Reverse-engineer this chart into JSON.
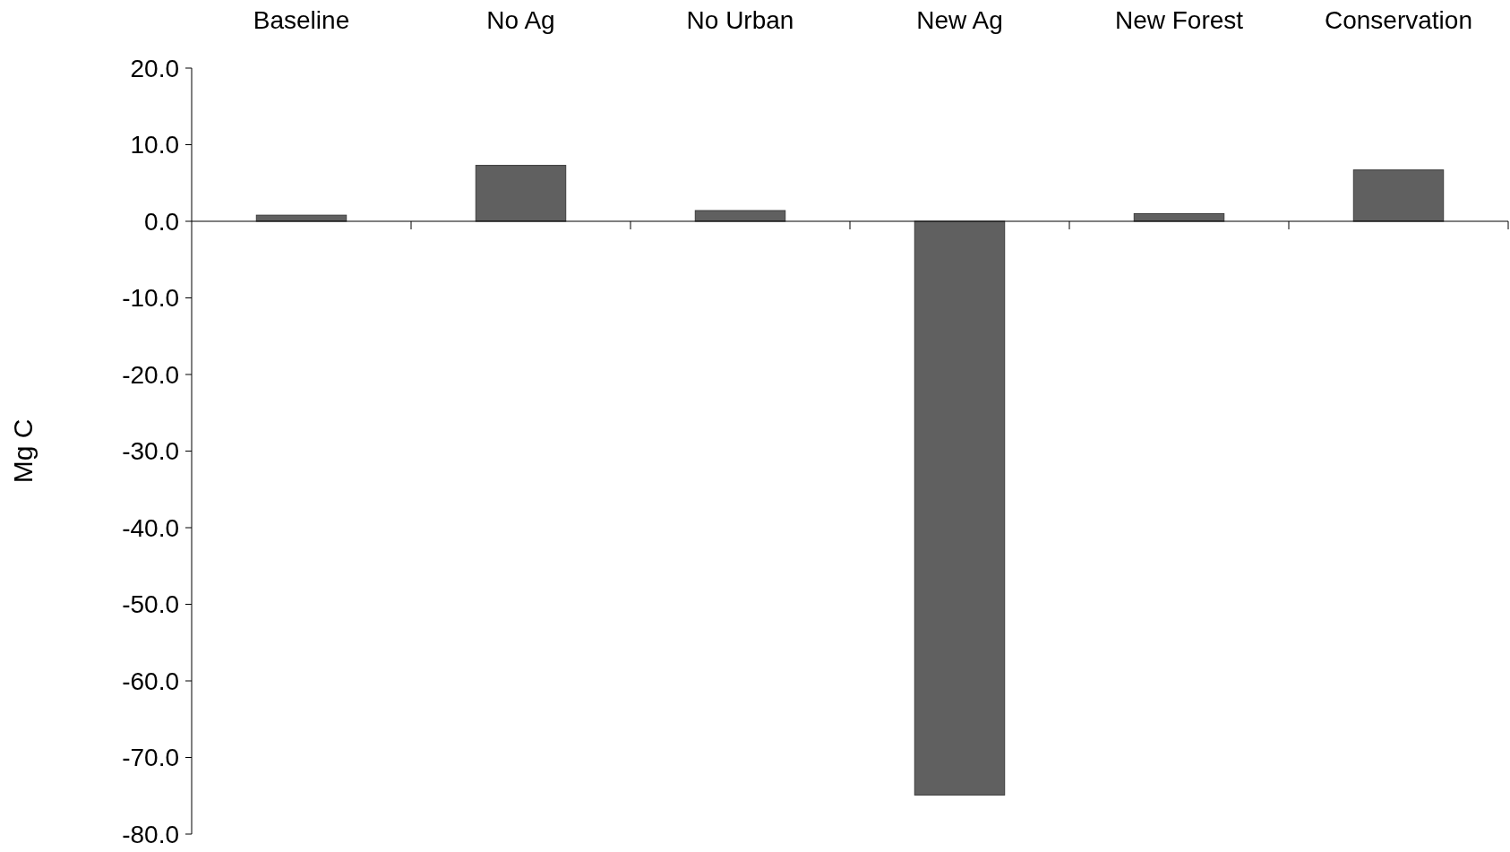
{
  "chart_data": {
    "type": "bar",
    "ylabel": "Mg C",
    "categories": [
      "Baseline",
      "No Ag",
      "No Urban",
      "New Ag",
      "New Forest",
      "Conservation"
    ],
    "values": [
      0.8,
      7.3,
      1.4,
      -74.9,
      1.0,
      6.7
    ],
    "color": "#606060",
    "ylim": [
      -80,
      20
    ],
    "yticks": [
      {
        "value": 20,
        "label": "20.0"
      },
      {
        "value": 10,
        "label": "10.0"
      },
      {
        "value": 0,
        "label": "0.0"
      },
      {
        "value": -10,
        "label": "-10.0"
      },
      {
        "value": -20,
        "label": "-20.0"
      },
      {
        "value": -30,
        "label": "-30.0"
      },
      {
        "value": -40,
        "label": "-40.0"
      },
      {
        "value": -50,
        "label": "-50.0"
      },
      {
        "value": -60,
        "label": "-60.0"
      },
      {
        "value": -70,
        "label": "-70.0"
      },
      {
        "value": -80,
        "label": "-80.0"
      }
    ]
  }
}
